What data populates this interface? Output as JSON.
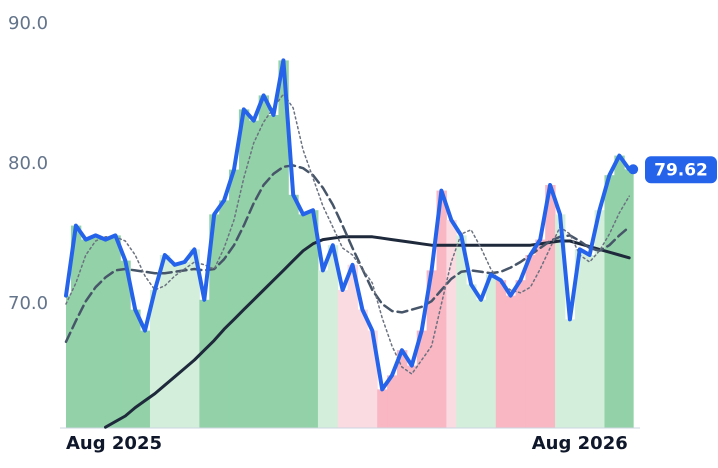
{
  "chart_data": {
    "type": "line",
    "categories": [
      "Aug 2025",
      null,
      null,
      null,
      null,
      null,
      null,
      null,
      null,
      null,
      null,
      null,
      null,
      null,
      null,
      null,
      null,
      null,
      null,
      null,
      null,
      null,
      null,
      null,
      null,
      null,
      null,
      null,
      null,
      null,
      null,
      null,
      null,
      null,
      null,
      null,
      null,
      null,
      null,
      null,
      null,
      null,
      null,
      null,
      null,
      null,
      null,
      null,
      null,
      null,
      null,
      null,
      "Aug 2026",
      null,
      null,
      null,
      null,
      null
    ],
    "ylim": [
      61.14,
      90
    ],
    "yticks": [
      {
        "value": 70,
        "label": "70.0"
      },
      {
        "value": 80,
        "label": "80.0"
      },
      {
        "value": 90,
        "label": "90.0"
      }
    ],
    "point_colors": [
      "#93d2a8",
      "#93d2a8",
      "#93d2a8",
      "#93d2a8",
      "#93d2a8",
      "#93d2a8",
      "#93d2a8",
      "#93d2a8",
      "#93d2a8",
      "#d4eedc",
      "#d4eedc",
      "#d4eedc",
      "#d4eedc",
      "#d4eedc",
      "#93d2a8",
      "#93d2a8",
      "#93d2a8",
      "#93d2a8",
      "#93d2a8",
      "#93d2a8",
      "#93d2a8",
      "#93d2a8",
      "#93d2a8",
      "#93d2a8",
      "#93d2a8",
      "#93d2a8",
      "#d4eedc",
      "#d4eedc",
      "#fbdbe2",
      "#fbdbe2",
      "#fbdbe2",
      "#fbdbe2",
      "#f9b6c3",
      "#f9b6c3",
      "#f9b6c3",
      "#f9b6c3",
      "#f9b6c3",
      "#f9b6c3",
      "#f9b6c3",
      "#fbdbe2",
      "#d4eedc",
      "#d4eedc",
      "#d4eedc",
      "#d4eedc",
      "#f9b6c3",
      "#f9b6c3",
      "#f9b6c3",
      "#f9b6c3",
      "#f9b6c3",
      "#f9b6c3",
      "#d4eedc",
      "#d4eedc",
      "#d4eedc",
      "#d4eedc",
      "#d4eedc",
      "#93d2a8",
      "#93d2a8",
      "#93d2a8"
    ],
    "series": [
      {
        "color": "#1e293b",
        "style": "solid",
        "width": 3,
        "values": [
          null,
          null,
          null,
          null,
          61.2,
          61.6,
          62,
          62.6,
          63.1,
          63.6,
          64.2,
          64.8,
          65.4,
          66,
          66.7,
          67.4,
          68.2,
          68.9,
          69.6,
          70.3,
          71,
          71.7,
          72.4,
          73.1,
          73.8,
          74.3,
          74.6,
          74.7,
          74.8,
          74.8,
          74.8,
          74.8,
          74.7,
          74.6,
          74.5,
          74.4,
          74.3,
          74.2,
          74.2,
          74.2,
          74.2,
          74.2,
          74.2,
          74.2,
          74.2,
          74.2,
          74.2,
          74.2,
          74.3,
          74.4,
          74.5,
          74.5,
          74.3,
          74.1,
          73.9,
          73.7,
          73.5,
          73.3
        ]
      },
      {
        "color": "#475569",
        "style": "dashed",
        "width": 2.5,
        "values": [
          67.3,
          68.8,
          70.2,
          71.2,
          71.9,
          72.4,
          72.5,
          72.4,
          72.3,
          72.2,
          72.2,
          72.3,
          72.4,
          72.5,
          72.4,
          72.5,
          73.2,
          74.2,
          75.6,
          77.2,
          78.5,
          79.3,
          79.8,
          79.9,
          79.7,
          79.2,
          78.3,
          77.1,
          75.6,
          74,
          72.5,
          71,
          70,
          69.5,
          69.4,
          69.6,
          69.8,
          70.2,
          71,
          71.8,
          72.3,
          72.4,
          72.3,
          72.2,
          72.3,
          72.6,
          73,
          73.5,
          74,
          74.5,
          74.8,
          74.9,
          74.5,
          74,
          73.8,
          74.2,
          74.9,
          75.5
        ]
      },
      {
        "color": "#6b7280",
        "style": "dotted",
        "width": 1.5,
        "values": [
          70,
          71.5,
          73.5,
          74.5,
          74.8,
          74.8,
          74.5,
          73.5,
          72,
          71,
          71.3,
          72,
          72.5,
          73,
          72.8,
          72.5,
          74,
          76,
          79,
          81.5,
          83,
          84,
          85,
          84,
          81,
          79,
          77,
          75.5,
          74,
          73.5,
          72.5,
          71.5,
          69,
          67,
          65.5,
          65,
          66,
          67,
          70,
          73,
          75,
          75.3,
          74,
          72.5,
          71.5,
          71,
          70.8,
          71.2,
          72.5,
          74,
          75.5,
          75,
          73.5,
          73,
          73.8,
          75,
          76.5,
          77.7
        ]
      },
      {
        "color": "#2563eb",
        "style": "solid",
        "width": 4,
        "last_label": true,
        "values": [
          70.6,
          75.6,
          74.6,
          74.9,
          74.6,
          74.9,
          73.1,
          69.6,
          68.1,
          71,
          73.5,
          72.8,
          73,
          73.9,
          70.3,
          76.4,
          77.4,
          79.6,
          83.9,
          83.1,
          84.9,
          83.5,
          87.4,
          77.8,
          76.4,
          76.7,
          72.4,
          74.2,
          71,
          72.8,
          69.6,
          68.1,
          63.9,
          64.9,
          66.7,
          65.6,
          68.1,
          72.4,
          78.1,
          76,
          74.9,
          71.4,
          70.3,
          72.1,
          71.7,
          70.6,
          71.7,
          73.5,
          74.6,
          78.5,
          76.4,
          68.9,
          73.9,
          73.5,
          76.7,
          79.2,
          80.6,
          79.62
        ]
      }
    ]
  }
}
